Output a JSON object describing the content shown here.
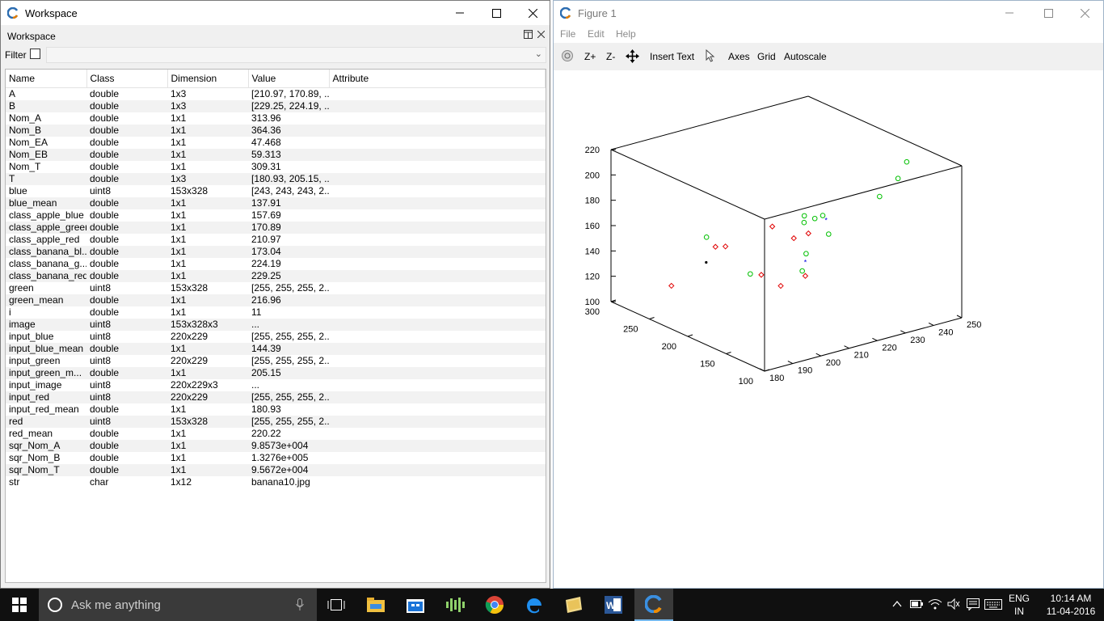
{
  "workspace_window": {
    "title": "Workspace",
    "panel_label": "Workspace",
    "filter_label": "Filter",
    "filter_value": "",
    "columns": [
      "Name",
      "Class",
      "Dimension",
      "Value",
      "Attribute"
    ],
    "rows": [
      [
        "A",
        "double",
        "1x3",
        "[210.97, 170.89, ...",
        ""
      ],
      [
        "B",
        "double",
        "1x3",
        "[229.25, 224.19, ...",
        ""
      ],
      [
        "Nom_A",
        "double",
        "1x1",
        "313.96",
        ""
      ],
      [
        "Nom_B",
        "double",
        "1x1",
        "364.36",
        ""
      ],
      [
        "Nom_EA",
        "double",
        "1x1",
        "47.468",
        ""
      ],
      [
        "Nom_EB",
        "double",
        "1x1",
        "59.313",
        ""
      ],
      [
        "Nom_T",
        "double",
        "1x1",
        "309.31",
        ""
      ],
      [
        "T",
        "double",
        "1x3",
        "[180.93, 205.15, ...",
        ""
      ],
      [
        "blue",
        "uint8",
        "153x328",
        "[243, 243, 243, 2...",
        ""
      ],
      [
        "blue_mean",
        "double",
        "1x1",
        "137.91",
        ""
      ],
      [
        "class_apple_blue",
        "double",
        "1x1",
        "157.69",
        ""
      ],
      [
        "class_apple_green",
        "double",
        "1x1",
        "170.89",
        ""
      ],
      [
        "class_apple_red",
        "double",
        "1x1",
        "210.97",
        ""
      ],
      [
        "class_banana_bl...",
        "double",
        "1x1",
        "173.04",
        ""
      ],
      [
        "class_banana_g...",
        "double",
        "1x1",
        "224.19",
        ""
      ],
      [
        "class_banana_red",
        "double",
        "1x1",
        "229.25",
        ""
      ],
      [
        "green",
        "uint8",
        "153x328",
        "[255, 255, 255, 2...",
        ""
      ],
      [
        "green_mean",
        "double",
        "1x1",
        "216.96",
        ""
      ],
      [
        "i",
        "double",
        "1x1",
        "11",
        ""
      ],
      [
        "image",
        "uint8",
        "153x328x3",
        "...",
        ""
      ],
      [
        "input_blue",
        "uint8",
        "220x229",
        "[255, 255, 255, 2...",
        ""
      ],
      [
        "input_blue_mean",
        "double",
        "1x1",
        "144.39",
        ""
      ],
      [
        "input_green",
        "uint8",
        "220x229",
        "[255, 255, 255, 2...",
        ""
      ],
      [
        "input_green_m...",
        "double",
        "1x1",
        "205.15",
        ""
      ],
      [
        "input_image",
        "uint8",
        "220x229x3",
        "...",
        ""
      ],
      [
        "input_red",
        "uint8",
        "220x229",
        "[255, 255, 255, 2...",
        ""
      ],
      [
        "input_red_mean",
        "double",
        "1x1",
        "180.93",
        ""
      ],
      [
        "red",
        "uint8",
        "153x328",
        "[255, 255, 255, 2...",
        ""
      ],
      [
        "red_mean",
        "double",
        "1x1",
        "220.22",
        ""
      ],
      [
        "sqr_Nom_A",
        "double",
        "1x1",
        "9.8573e+004",
        ""
      ],
      [
        "sqr_Nom_B",
        "double",
        "1x1",
        "1.3276e+005",
        ""
      ],
      [
        "sqr_Nom_T",
        "double",
        "1x1",
        "9.5672e+004",
        ""
      ],
      [
        "str",
        "char",
        "1x12",
        "banana10.jpg",
        ""
      ]
    ]
  },
  "figure_window": {
    "title": "Figure 1",
    "menu": [
      "File",
      "Edit",
      "Help"
    ],
    "toolbar": {
      "zoom_in": "Z+",
      "zoom_out": "Z-",
      "insert_text": "Insert Text",
      "axes": "Axes",
      "grid": "Grid",
      "autoscale": "Autoscale"
    }
  },
  "chart_data": {
    "type": "scatter",
    "projection": "3d",
    "title": "",
    "xlabel": "",
    "ylabel": "",
    "zlabel": "",
    "xlim": [
      100,
      300
    ],
    "ylim": [
      180,
      250
    ],
    "zlim": [
      100,
      220
    ],
    "xticks": [
      "300",
      "250",
      "200",
      "150",
      "100"
    ],
    "yticks": [
      "180",
      "190",
      "200",
      "210",
      "220",
      "230",
      "240",
      "250"
    ],
    "zticks": [
      "100",
      "120",
      "140",
      "160",
      "180",
      "200",
      "220"
    ],
    "grid": false,
    "series": [
      {
        "marker": "circle",
        "color": "#00c000",
        "points": [
          [
            168,
            249,
            205
          ],
          [
            172,
            247,
            192
          ],
          [
            185,
            244,
            176
          ],
          [
            215,
            232,
            160
          ],
          [
            218,
            230,
            158
          ],
          [
            228,
            229,
            158
          ],
          [
            232,
            230,
            151
          ],
          [
            222,
            236,
            141
          ],
          [
            200,
            222,
            140
          ],
          [
            205,
            222,
            125
          ],
          [
            225,
            209,
            125
          ],
          [
            260,
            203,
            148
          ]
        ]
      },
      {
        "marker": "diamond",
        "color": "#e00000",
        "points": [
          [
            208,
            225,
            152
          ],
          [
            227,
            225,
            143
          ],
          [
            218,
            211,
            125
          ],
          [
            250,
            207,
            141
          ],
          [
            252,
            204,
            142
          ],
          [
            222,
            216,
            159
          ],
          [
            190,
            219,
            127
          ],
          [
            200,
            213,
            120
          ],
          [
            258,
            190,
            118
          ]
        ]
      },
      {
        "marker": "star",
        "color": "#0000e0",
        "points": [
          [
            213,
            233,
            156
          ],
          [
            207,
            224,
            130
          ]
        ]
      },
      {
        "marker": "dot",
        "color": "#000000",
        "points": [
          [
            176,
            180,
            165
          ]
        ]
      }
    ]
  },
  "taskbar": {
    "search_placeholder": "Ask me anything",
    "language_top": "ENG",
    "language_bottom": "IN",
    "time": "10:14 AM",
    "date": "11-04-2016"
  }
}
